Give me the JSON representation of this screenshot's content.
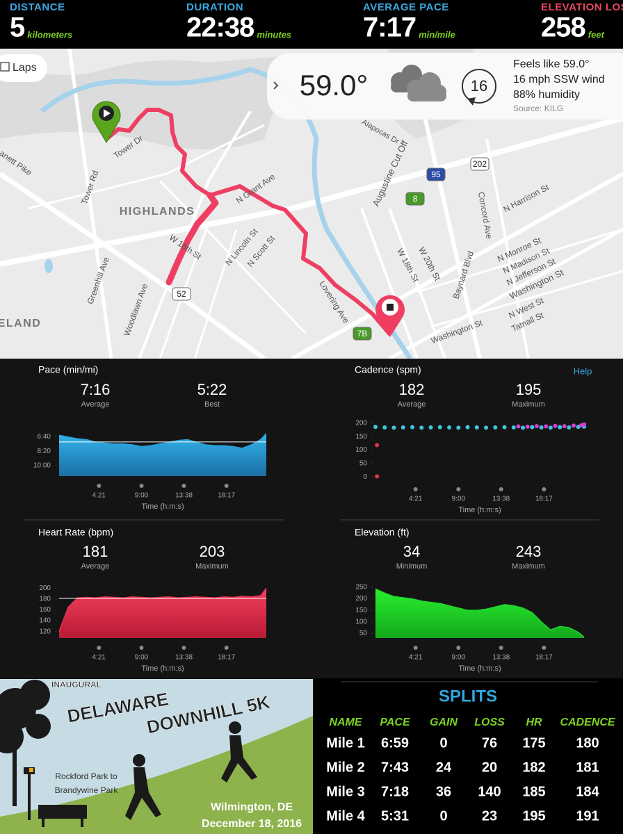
{
  "header": {
    "stats": [
      {
        "label": "DISTANCE",
        "value": "5",
        "unit": "kilometers"
      },
      {
        "label": "DURATION",
        "value": "22:38",
        "unit": "minutes"
      },
      {
        "label": "AVERAGE PACE",
        "value": "7:17",
        "unit": "min/mile"
      },
      {
        "label": "ELEVATION LOSS",
        "value": "258",
        "unit": "feet"
      }
    ]
  },
  "map": {
    "laps": "Laps",
    "labels": [
      "Tower Rd",
      "Tower Dr",
      "HIGHLANDS",
      "N Grant Ave",
      "N Lincoln St",
      "N Scott St",
      "W 16th St",
      "Greenhill Ave",
      "Woodlawn Ave",
      "ELAND",
      "Lovering Ave",
      "Augustine Cut Off",
      "Alapocas Dr",
      "W 18th St",
      "W 20th St",
      "Baynard Blvd",
      "Concord Ave",
      "N Harrison St",
      "N Monroe St",
      "N Madison St",
      "N Jefferson St",
      "Washington St",
      "N West St",
      "Tatnall St",
      "Washington St",
      "anett Pike"
    ],
    "shields": [
      "95",
      "202",
      "8",
      "52",
      "7B"
    ],
    "weather": {
      "temp": "59.0°",
      "wind_speed": "16",
      "feels": "Feels like 59.0°",
      "wind": "16 mph SSW wind",
      "humidity": "88% humidity",
      "source": "Source: KILG"
    }
  },
  "help": "Help",
  "chart_data": [
    {
      "type": "area",
      "title": "Pace (min/mi)",
      "color": "#2b9fd9",
      "stats": [
        {
          "value": "7:16",
          "label": "Average"
        },
        {
          "value": "5:22",
          "label": "Best"
        }
      ],
      "reference": 7.27,
      "x": [
        0,
        60,
        120,
        180,
        240,
        300,
        360,
        420,
        480,
        540,
        600,
        660,
        720,
        780,
        840,
        900,
        960,
        1020,
        1080,
        1140,
        1200,
        1260,
        1320,
        1358
      ],
      "values": [
        6.5,
        6.7,
        6.9,
        7.0,
        7.3,
        7.4,
        7.5,
        7.5,
        7.6,
        7.8,
        7.7,
        7.5,
        7.3,
        7.1,
        7.0,
        7.3,
        7.6,
        7.7,
        7.7,
        7.8,
        8.0,
        7.6,
        7.0,
        6.3
      ],
      "xlim": [
        0,
        1358
      ],
      "ylim": [
        11.2,
        5.6
      ],
      "yticks": [
        {
          "value": 6.667,
          "label": "6:40"
        },
        {
          "value": 8.333,
          "label": "8:20"
        },
        {
          "value": 10,
          "label": "10:00"
        }
      ],
      "xticks": [
        {
          "value": 261,
          "label": "4:21"
        },
        {
          "value": 540,
          "label": "9:00"
        },
        {
          "value": 818,
          "label": "13:38"
        },
        {
          "value": 1097,
          "label": "18:17"
        }
      ],
      "xlabel": "Time (h:m:s)"
    },
    {
      "type": "scatter",
      "title": "Cadence (spm)",
      "stats": [
        {
          "value": "182",
          "label": "Average"
        },
        {
          "value": "195",
          "label": "Maximum"
        }
      ],
      "series": [
        {
          "color": "#3ec6e0",
          "x": [
            0,
            60,
            120,
            180,
            240,
            300,
            360,
            420,
            480,
            540,
            600,
            660,
            720,
            780,
            840,
            900,
            960,
            1020,
            1080,
            1140,
            1200,
            1260,
            1320,
            1358
          ],
          "values": [
            186,
            184,
            183,
            184,
            185,
            183,
            184,
            185,
            184,
            183,
            185,
            184,
            183,
            184,
            185,
            184,
            183,
            185,
            184,
            183,
            185,
            184,
            186,
            187
          ]
        },
        {
          "color": "#d63fd6",
          "x": [
            930,
            990,
            1050,
            1110,
            1170,
            1230,
            1290,
            1340,
            1358
          ],
          "values": [
            188,
            187,
            189,
            188,
            190,
            189,
            191,
            192,
            195
          ]
        },
        {
          "color": "#e8304f",
          "x": [
            10,
            10
          ],
          "values": [
            118,
            2
          ]
        }
      ],
      "xlim": [
        0,
        1358
      ],
      "ylim": [
        -10,
        210
      ],
      "yticks": [
        200,
        150,
        100,
        50,
        0
      ],
      "xticks": [
        {
          "value": 261,
          "label": "4:21"
        },
        {
          "value": 540,
          "label": "9:00"
        },
        {
          "value": 818,
          "label": "13:38"
        },
        {
          "value": 1097,
          "label": "18:17"
        }
      ],
      "xlabel": "Time (h:m:s)"
    },
    {
      "type": "area",
      "title": "Heart Rate (bpm)",
      "color": "#e8304f",
      "stats": [
        {
          "value": "181",
          "label": "Average"
        },
        {
          "value": "203",
          "label": "Maximum"
        }
      ],
      "reference": 181,
      "x": [
        0,
        60,
        120,
        180,
        240,
        300,
        360,
        420,
        480,
        540,
        600,
        660,
        720,
        780,
        840,
        900,
        960,
        1020,
        1080,
        1140,
        1200,
        1260,
        1320,
        1358
      ],
      "values": [
        120,
        165,
        182,
        183,
        182,
        184,
        183,
        182,
        184,
        183,
        182,
        183,
        184,
        182,
        183,
        184,
        183,
        182,
        184,
        183,
        185,
        184,
        186,
        200
      ],
      "xlim": [
        0,
        1358
      ],
      "ylim": [
        108,
        208
      ],
      "yticks": [
        200,
        180,
        160,
        140,
        120
      ],
      "xticks": [
        {
          "value": 261,
          "label": "4:21"
        },
        {
          "value": 540,
          "label": "9:00"
        },
        {
          "value": 818,
          "label": "13:38"
        },
        {
          "value": 1097,
          "label": "18:17"
        }
      ],
      "xlabel": "Time (h:m:s)"
    },
    {
      "type": "area",
      "title": "Elevation (ft)",
      "color": "#1fd62a",
      "stats": [
        {
          "value": "34",
          "label": "Minimum"
        },
        {
          "value": "243",
          "label": "Maximum"
        }
      ],
      "x": [
        0,
        60,
        120,
        180,
        240,
        300,
        360,
        420,
        480,
        540,
        600,
        660,
        720,
        780,
        840,
        900,
        960,
        1020,
        1080,
        1140,
        1200,
        1260,
        1320,
        1358
      ],
      "values": [
        243,
        225,
        210,
        205,
        200,
        190,
        185,
        180,
        170,
        160,
        150,
        150,
        155,
        165,
        175,
        170,
        160,
        140,
        100,
        65,
        80,
        75,
        55,
        34
      ],
      "xlim": [
        0,
        1358
      ],
      "ylim": [
        30,
        250
      ],
      "yticks": [
        250,
        200,
        150,
        100,
        50
      ],
      "xticks": [
        {
          "value": 261,
          "label": "4:21"
        },
        {
          "value": 540,
          "label": "9:00"
        },
        {
          "value": 818,
          "label": "13:38"
        },
        {
          "value": 1097,
          "label": "18:17"
        }
      ],
      "xlabel": "Time (h:m:s)"
    }
  ],
  "poster": {
    "lines": [
      "INAUGURAL",
      "DELAWARE",
      "DOWNHILL 5K",
      "Rockford Park to",
      "Brandywine Park",
      "Wilmington, DE",
      "December 18, 2016"
    ]
  },
  "splits": {
    "title": "SPLITS",
    "columns": [
      "NAME",
      "PACE",
      "GAIN",
      "LOSS",
      "HR",
      "CADENCE"
    ],
    "rows": [
      [
        "Mile 1",
        "6:59",
        "0",
        "76",
        "175",
        "180"
      ],
      [
        "Mile 2",
        "7:43",
        "24",
        "20",
        "182",
        "181"
      ],
      [
        "Mile 3",
        "7:18",
        "36",
        "140",
        "185",
        "184"
      ],
      [
        "Mile 4",
        "5:31",
        "0",
        "23",
        "195",
        "191"
      ]
    ]
  }
}
